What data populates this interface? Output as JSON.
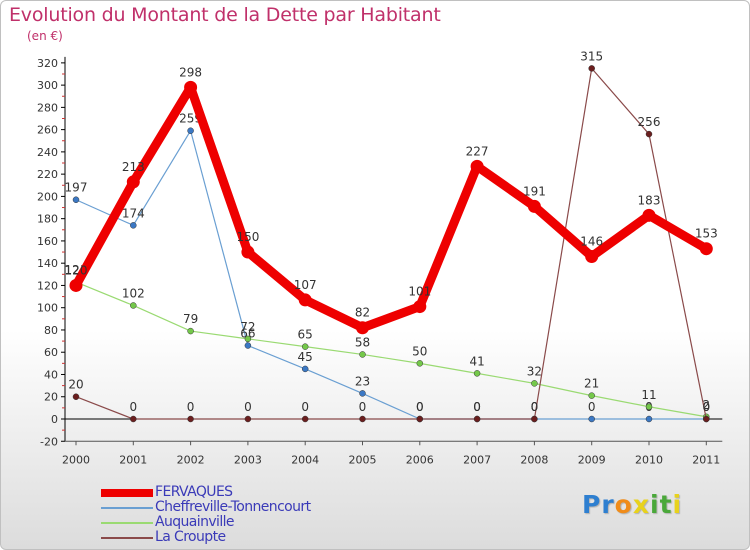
{
  "title": "Evolution du Montant de la Dette par Habitant",
  "unit_label": "(en €)",
  "logo": {
    "text": "Proxiti",
    "letters": [
      {
        "ch": "P",
        "color": "#2e7fd0"
      },
      {
        "ch": "r",
        "color": "#2e7fd0"
      },
      {
        "ch": "o",
        "color": "#f08c1a"
      },
      {
        "ch": "x",
        "color": "#e8d21c"
      },
      {
        "ch": "i",
        "color": "#4aa83a"
      },
      {
        "ch": "t",
        "color": "#4aa83a"
      },
      {
        "ch": "i",
        "color": "#e8d21c"
      }
    ]
  },
  "chart_data": {
    "type": "line",
    "title": "Evolution du Montant de la Dette par Habitant",
    "ylabel": "(en €)",
    "xlabel": "",
    "x": [
      "2000",
      "2001",
      "2002",
      "2003",
      "2004",
      "2005",
      "2006",
      "2007",
      "2008",
      "2009",
      "2010",
      "2011"
    ],
    "ylim": [
      -20,
      320
    ],
    "yticks": [
      -20,
      0,
      20,
      40,
      60,
      80,
      100,
      120,
      140,
      160,
      180,
      200,
      220,
      240,
      260,
      280,
      300,
      320
    ],
    "grid": false,
    "legend_position": "bottom-left",
    "series": [
      {
        "name": "Cheffreville-Tonnencourt",
        "color": "#6a9fd2",
        "marker": "#3b78c4",
        "width": 1.2,
        "values": [
          197,
          174,
          259,
          66,
          45,
          23,
          0,
          0,
          0,
          0,
          0,
          0
        ],
        "labels": [
          "197",
          "174",
          "259",
          "66",
          "45",
          "23",
          "0",
          "0",
          "0",
          "0",
          "0",
          "0"
        ]
      },
      {
        "name": "Auquainville",
        "color": "#9ada72",
        "marker": "#74c84a",
        "width": 1.2,
        "values": [
          123,
          102,
          79,
          72,
          65,
          58,
          50,
          41,
          32,
          21,
          11,
          2
        ],
        "labels": [
          "123",
          "102",
          "79",
          "72",
          "65",
          "58",
          "50",
          "41",
          "32",
          "21",
          "11",
          "2"
        ]
      },
      {
        "name": "La Croupte",
        "color": "#8a4a4a",
        "marker": "#6b1e1e",
        "width": 1.2,
        "values": [
          20,
          0,
          0,
          0,
          0,
          0,
          0,
          0,
          0,
          315,
          256,
          0
        ],
        "labels": [
          "20",
          "0",
          "0",
          "0",
          "0",
          "0",
          "0",
          "0",
          "0",
          "315",
          "256",
          "0"
        ]
      },
      {
        "name": "FERVAQUES",
        "color": "#ee0000",
        "marker": "#ee0000",
        "width": 9,
        "values": [
          120,
          213,
          298,
          150,
          107,
          82,
          101,
          227,
          191,
          146,
          183,
          153
        ],
        "labels": [
          "120",
          "213",
          "298",
          "150",
          "107",
          "82",
          "101",
          "227",
          "191",
          "146",
          "183",
          "153"
        ]
      }
    ],
    "legend_order": [
      "FERVAQUES",
      "Cheffreville-Tonnencourt",
      "Auquainville",
      "La Croupte"
    ]
  }
}
